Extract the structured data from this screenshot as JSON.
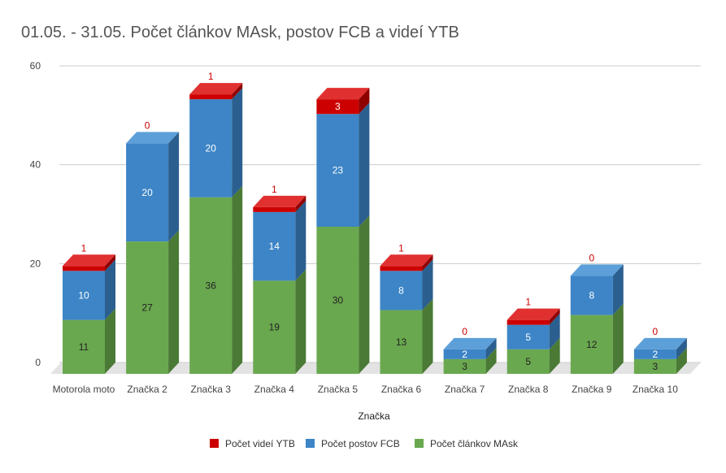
{
  "chart_data": {
    "type": "bar",
    "stacked": true,
    "three_d": true,
    "title": "01.05. - 31.05. Počet článkov MAsk, postov FCB a videí YTB",
    "xlabel": "Značka",
    "ylabel": "",
    "ylim": [
      0,
      60
    ],
    "yticks": [
      0,
      20,
      40,
      60
    ],
    "grid": true,
    "legend_position": "bottom",
    "categories": [
      "Motorola moto",
      "Značka 2",
      "Značka 3",
      "Značka 4",
      "Značka 5",
      "Značka 6",
      "Značka 7",
      "Značka 8",
      "Značka 9",
      "Značka 10"
    ],
    "series": [
      {
        "name": "Počet článkov MAsk",
        "color": "#6aa84f",
        "side_color": "#4a7a35",
        "top_color": "#8bc46f",
        "label_color": "#222222",
        "values": [
          11,
          27,
          36,
          19,
          30,
          13,
          3,
          5,
          12,
          3
        ]
      },
      {
        "name": "Počet postov FCB",
        "color": "#3d85c6",
        "side_color": "#2b5f8f",
        "top_color": "#5d9fd8",
        "label_color": "#ffffff",
        "values": [
          10,
          20,
          20,
          14,
          23,
          8,
          2,
          5,
          8,
          2
        ]
      },
      {
        "name": "Počet videí YTB",
        "color": "#cc0000",
        "side_color": "#8f0000",
        "top_color": "#e03030",
        "label_color": "#ffffff",
        "values": [
          1,
          0,
          1,
          1,
          3,
          1,
          0,
          1,
          0,
          0
        ]
      }
    ],
    "legend_order": [
      "Počet videí YTB",
      "Počet postov FCB",
      "Počet článkov MAsk"
    ]
  }
}
